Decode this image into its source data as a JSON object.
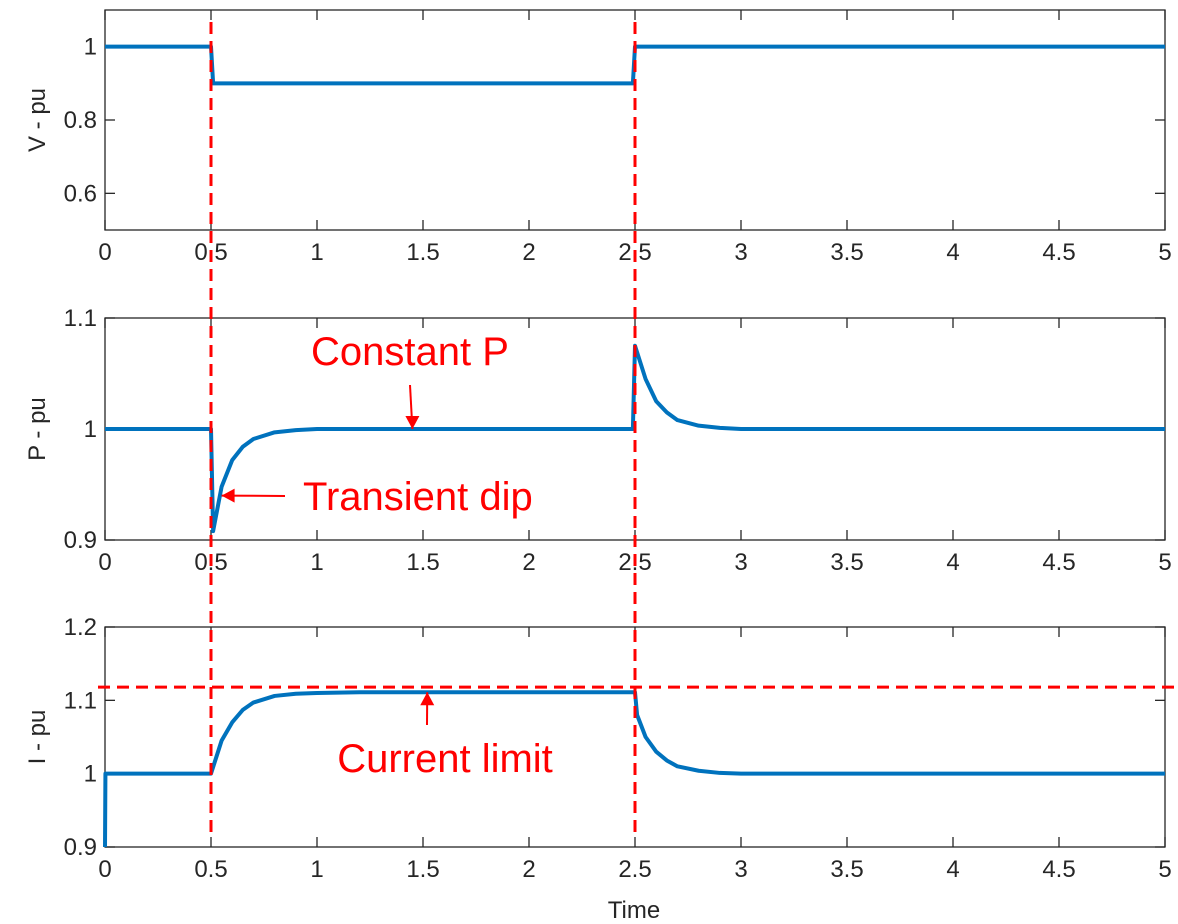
{
  "chart_data": [
    {
      "type": "line",
      "title": "",
      "xlabel": "",
      "ylabel": "V - pu",
      "xlim": [
        0,
        5
      ],
      "ylim": [
        0.5,
        1.1
      ],
      "xticks": [
        "0",
        "0.5",
        "1",
        "1.5",
        "2",
        "2.5",
        "3",
        "3.5",
        "4",
        "4.5",
        "5"
      ],
      "yticks": [
        "0.6",
        "0.8",
        "1"
      ],
      "grid": false,
      "series": [
        {
          "x": [
            0,
            0.5,
            0.51,
            2.49,
            2.5,
            5
          ],
          "y": [
            1.0,
            1.0,
            0.9,
            0.9,
            1.0,
            1.0
          ]
        }
      ],
      "annotations": []
    },
    {
      "type": "line",
      "title": "",
      "xlabel": "",
      "ylabel": "P - pu",
      "xlim": [
        0,
        5
      ],
      "ylim": [
        0.9,
        1.1
      ],
      "xticks": [
        "0",
        "0.5",
        "1",
        "1.5",
        "2",
        "2.5",
        "3",
        "3.5",
        "4",
        "4.5",
        "5"
      ],
      "yticks": [
        "0.9",
        "1",
        "1.1"
      ],
      "grid": false,
      "series": [
        {
          "x": [
            0,
            0.5,
            0.51,
            0.55,
            0.6,
            0.65,
            0.7,
            0.8,
            0.9,
            1.0,
            1.2,
            1.5,
            2.0,
            2.49,
            2.5,
            2.52,
            2.55,
            2.6,
            2.65,
            2.7,
            2.8,
            2.9,
            3.0,
            3.2,
            3.5,
            5.0
          ],
          "y": [
            1.0,
            1.0,
            0.908,
            0.948,
            0.972,
            0.984,
            0.991,
            0.997,
            0.999,
            1.0,
            1.0,
            1.0,
            1.0,
            1.0,
            1.075,
            1.063,
            1.045,
            1.025,
            1.015,
            1.008,
            1.003,
            1.001,
            1.0,
            1.0,
            1.0,
            1.0
          ]
        }
      ],
      "annotations": [
        {
          "text": "Constant P",
          "x": 1.45,
          "y": 1.0,
          "direction": "down"
        },
        {
          "text": "Transient dip",
          "x": 0.55,
          "y": 0.94,
          "direction": "left"
        }
      ]
    },
    {
      "type": "line",
      "title": "",
      "xlabel": "Time",
      "ylabel": "I - pu",
      "xlim": [
        0,
        5
      ],
      "ylim": [
        0.9,
        1.2
      ],
      "xticks": [
        "0",
        "0.5",
        "1",
        "1.5",
        "2",
        "2.5",
        "3",
        "3.5",
        "4",
        "4.5",
        "5"
      ],
      "yticks": [
        "0.9",
        "1",
        "1.1",
        "1.2"
      ],
      "grid": false,
      "series": [
        {
          "x": [
            0,
            0.002,
            0.5,
            0.55,
            0.6,
            0.65,
            0.7,
            0.8,
            0.9,
            1.0,
            1.2,
            1.5,
            2.0,
            2.5,
            2.51,
            2.55,
            2.6,
            2.65,
            2.7,
            2.8,
            2.9,
            3.0,
            3.2,
            3.5,
            5.0
          ],
          "y": [
            0.9,
            1.0,
            1.0,
            1.045,
            1.07,
            1.087,
            1.097,
            1.106,
            1.109,
            1.11,
            1.111,
            1.111,
            1.111,
            1.111,
            1.08,
            1.05,
            1.03,
            1.018,
            1.01,
            1.004,
            1.001,
            1.0,
            1.0,
            1.0,
            1.0
          ]
        }
      ],
      "reference_lines": [
        {
          "orientation": "horizontal",
          "y": 1.118
        }
      ],
      "annotations": [
        {
          "text": "Current limit",
          "x": 1.52,
          "y": 1.111,
          "direction": "up"
        }
      ]
    }
  ],
  "vertical_markers_x": [
    0.5,
    2.5
  ],
  "colors": {
    "series": "#0072BD",
    "annotation": "#FF0000",
    "axis": "#262626"
  }
}
